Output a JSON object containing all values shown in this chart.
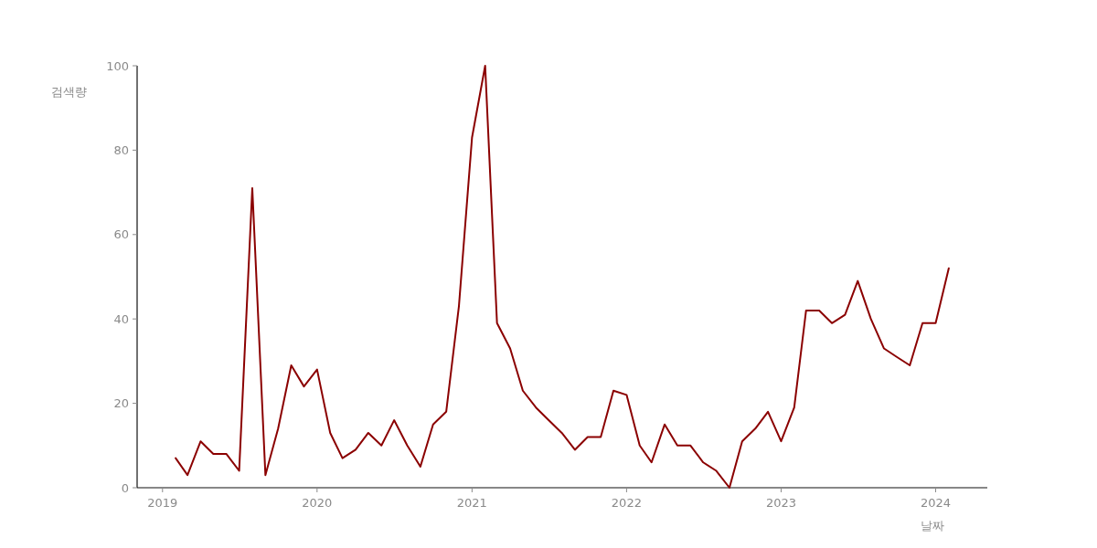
{
  "chart_data": {
    "type": "line",
    "xlabel": "날짜",
    "ylabel": "검색량",
    "x": [
      "2019-02",
      "2019-03",
      "2019-04",
      "2019-05",
      "2019-06",
      "2019-07",
      "2019-08",
      "2019-09",
      "2019-10",
      "2019-11",
      "2019-12",
      "2020-01",
      "2020-02",
      "2020-03",
      "2020-04",
      "2020-05",
      "2020-06",
      "2020-07",
      "2020-08",
      "2020-09",
      "2020-10",
      "2020-11",
      "2020-12",
      "2021-01",
      "2021-02",
      "2021-03",
      "2021-04",
      "2021-05",
      "2021-06",
      "2021-07",
      "2021-08",
      "2021-09",
      "2021-10",
      "2021-11",
      "2021-12",
      "2022-01",
      "2022-02",
      "2022-03",
      "2022-04",
      "2022-05",
      "2022-06",
      "2022-07",
      "2022-08",
      "2022-09",
      "2022-10",
      "2022-11",
      "2022-12",
      "2023-01",
      "2023-02",
      "2023-03",
      "2023-04",
      "2023-05",
      "2023-06",
      "2023-07",
      "2023-08",
      "2023-09",
      "2023-10",
      "2023-11",
      "2023-12",
      "2024-01",
      "2024-02"
    ],
    "values": [
      7,
      3,
      11,
      8,
      8,
      4,
      71,
      3,
      14,
      29,
      24,
      28,
      13,
      7,
      9,
      13,
      10,
      16,
      10,
      5,
      15,
      18,
      43,
      83,
      100,
      39,
      33,
      23,
      19,
      16,
      13,
      9,
      12,
      12,
      23,
      22,
      10,
      6,
      15,
      10,
      10,
      6,
      4,
      0,
      11,
      14,
      18,
      11,
      19,
      42,
      42,
      39,
      41,
      49,
      40,
      33,
      31,
      29,
      39,
      39,
      52
    ],
    "color": "#8b0000",
    "xlim": [
      "2018-11-02",
      "2024-05-02"
    ],
    "xticks": [
      "2019",
      "2020",
      "2021",
      "2022",
      "2023",
      "2024"
    ],
    "ylim": [
      0,
      100
    ],
    "yticks": [
      0,
      20,
      40,
      60,
      80,
      100
    ]
  }
}
